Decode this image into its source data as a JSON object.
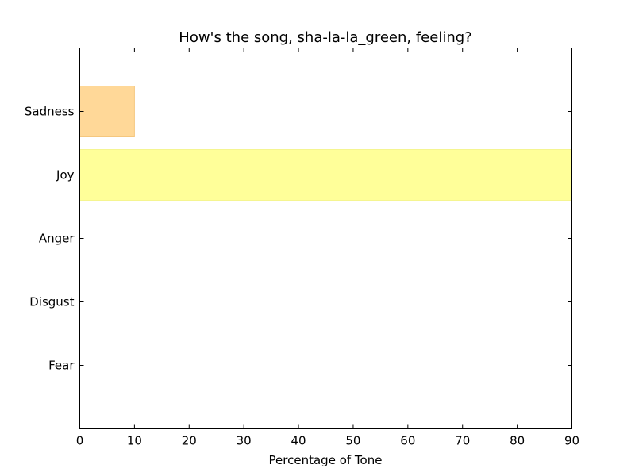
{
  "chart_data": {
    "type": "bar",
    "orientation": "horizontal",
    "title": "How's the song, sha-la-la_green, feeling?",
    "xlabel": "Percentage of Tone",
    "ylabel": "",
    "categories": [
      "Sadness",
      "Joy",
      "Anger",
      "Disgust",
      "Fear"
    ],
    "values": [
      10,
      95,
      0,
      0,
      0
    ],
    "colors": [
      "#ffd898",
      "#ffff99",
      "#ffffff",
      "#ffffff",
      "#ffffff"
    ],
    "edge_colors": [
      "#f5c77e",
      "#f5f590",
      "#ffffff",
      "#ffffff",
      "#ffffff"
    ],
    "xlim": [
      0,
      90
    ],
    "xticks": [
      0,
      10,
      20,
      30,
      40,
      50,
      60,
      70,
      80,
      90
    ],
    "grid": false,
    "legend": "none"
  }
}
